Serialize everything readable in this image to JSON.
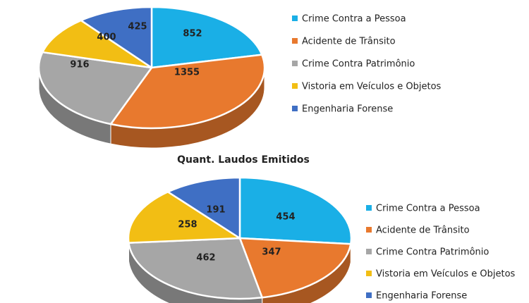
{
  "chart_data": [
    {
      "type": "pie",
      "title": "",
      "categories": [
        "Crime Contra a Pessoa",
        "Acidente de Trânsito",
        "Crime Contra Patrimônio",
        "Vistoria em Veículos  e Objetos",
        "Engenharia Forense"
      ],
      "values": [
        852,
        1355,
        916,
        400,
        425
      ],
      "colors": [
        "#1AAFE6",
        "#E8792E",
        "#A6A6A6",
        "#F2BE14",
        "#3F6FC4"
      ],
      "legend_position": "right"
    },
    {
      "type": "pie",
      "title": "Quant. Laudos Emitidos",
      "categories": [
        "Crime Contra a Pessoa",
        "Acidente de Trânsito",
        "Crime Contra Patrimônio",
        "Vistoria em Veículos e Objetos",
        "Engenharia Forense"
      ],
      "values": [
        454,
        347,
        462,
        258,
        191
      ],
      "colors": [
        "#1AAFE6",
        "#E8792E",
        "#A6A6A6",
        "#F2BE14",
        "#3F6FC4"
      ],
      "legend_position": "right"
    }
  ]
}
